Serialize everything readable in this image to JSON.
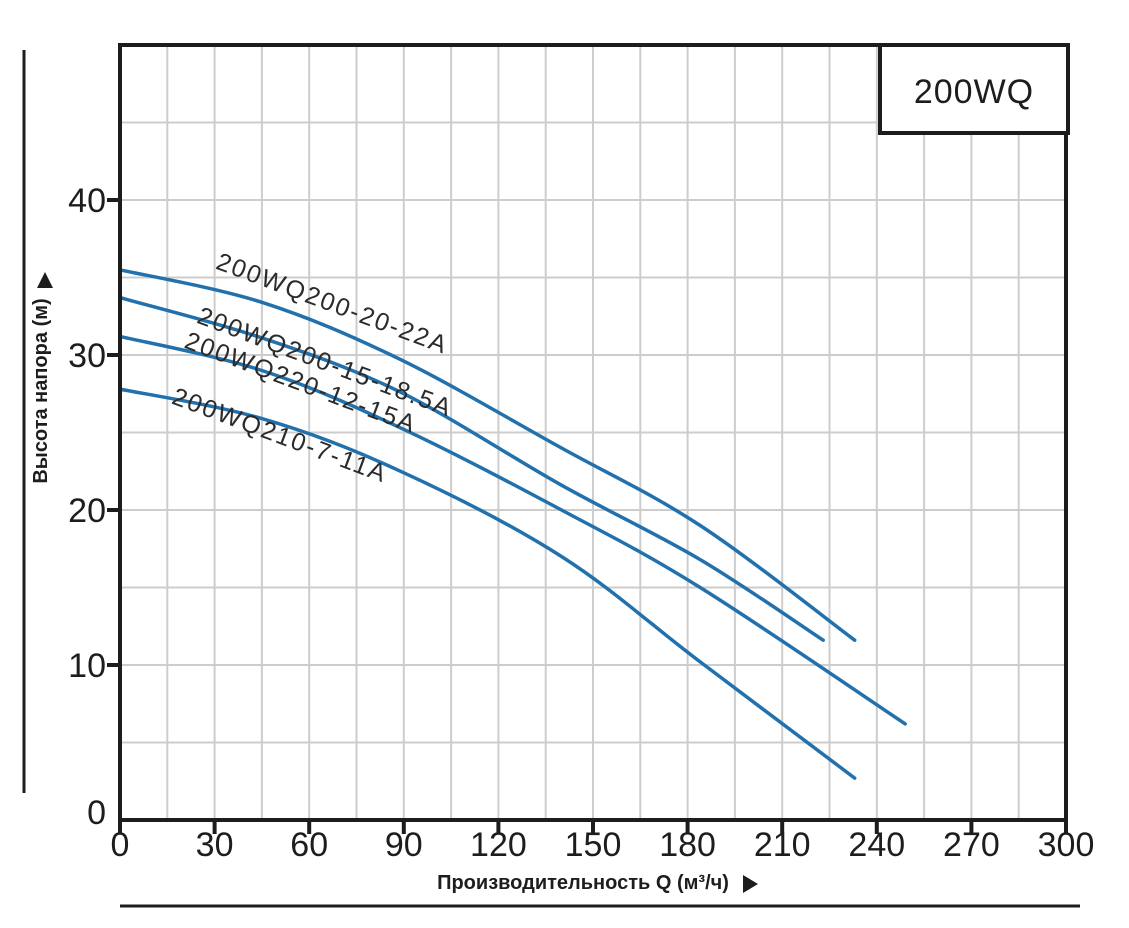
{
  "chart_data": {
    "type": "line",
    "title_box": "200WQ",
    "xlabel": "Производительность Q (м³/ч)",
    "ylabel": "Высота напора (м)",
    "xlim": [
      0,
      300
    ],
    "ylim": [
      0,
      50
    ],
    "x_tick_labels": [
      0,
      30,
      60,
      90,
      120,
      150,
      180,
      210,
      240,
      270,
      300
    ],
    "y_tick_labels": [
      0,
      10,
      20,
      30,
      40
    ],
    "x_minor_grid_step": 15,
    "y_grid_step": 5,
    "grid": "on",
    "legend_position": "labels-along-curves",
    "series": [
      {
        "name": "200WQ200-20-22A",
        "points": [
          [
            0,
            35.5
          ],
          [
            45,
            33.4
          ],
          [
            89,
            29.7
          ],
          [
            140,
            24.0
          ],
          [
            184,
            19.0
          ],
          [
            233,
            11.6
          ]
        ],
        "label_at": [
          30,
          35.6
        ],
        "label_angle_deg": 20.5
      },
      {
        "name": "200WQ200-15-18.5A",
        "points": [
          [
            0,
            33.7
          ],
          [
            45,
            31.1
          ],
          [
            89,
            27.6
          ],
          [
            140,
            21.6
          ],
          [
            184,
            16.8
          ],
          [
            223,
            11.6
          ]
        ],
        "label_at": [
          24,
          32.1
        ],
        "label_angle_deg": 20.5
      },
      {
        "name": "200WQ220-12-15A",
        "points": [
          [
            0,
            31.2
          ],
          [
            45,
            29.0
          ],
          [
            89,
            25.3
          ],
          [
            140,
            20.0
          ],
          [
            184,
            15.0
          ],
          [
            249,
            6.2
          ]
        ],
        "label_at": [
          20,
          30.5
        ],
        "label_angle_deg": 20.5
      },
      {
        "name": "200WQ210-7-11A",
        "points": [
          [
            0,
            27.8
          ],
          [
            45,
            25.9
          ],
          [
            89,
            22.5
          ],
          [
            140,
            17.0
          ],
          [
            184,
            10.2
          ],
          [
            233,
            2.7
          ]
        ],
        "label_at": [
          16,
          26.9
        ],
        "label_angle_deg": 20.5
      }
    ],
    "icons": {
      "y_axis_arrow": "triangle-up",
      "x_axis_arrow": "triangle-right"
    },
    "colors": {
      "curve": "#2271ad",
      "grid": "#cdcdcd",
      "axis": "#1d1d1b",
      "text": "#1d1d1b",
      "background": "#ffffff"
    }
  }
}
